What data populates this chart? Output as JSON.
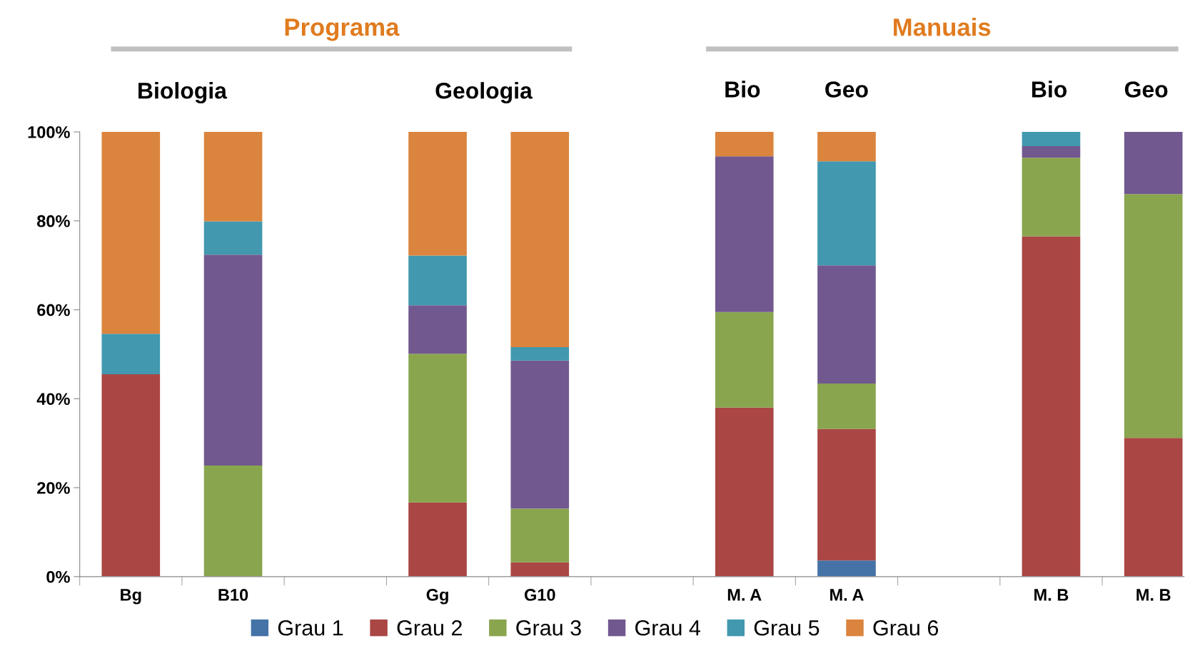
{
  "chart_data": {
    "type": "bar",
    "stacked": true,
    "categories": [
      "Bg",
      "B10",
      null,
      "Gg",
      "G10",
      null,
      "M. A",
      "M. A",
      null,
      "M. B",
      "M. B"
    ],
    "series": [
      {
        "name": "Grau 1",
        "color": "#4572a7",
        "values": [
          0,
          0,
          null,
          0,
          0,
          null,
          0,
          3.6,
          null,
          0,
          0
        ]
      },
      {
        "name": "Grau 2",
        "color": "#aa4643",
        "values": [
          45.5,
          0,
          null,
          16.7,
          3.2,
          null,
          38.0,
          29.6,
          null,
          76.5,
          31.2
        ]
      },
      {
        "name": "Grau 3",
        "color": "#89a54e",
        "values": [
          0,
          25.0,
          null,
          33.4,
          12.1,
          null,
          21.5,
          10.2,
          null,
          17.7,
          54.8
        ]
      },
      {
        "name": "Grau 4",
        "color": "#71588f",
        "values": [
          0,
          47.4,
          null,
          10.9,
          33.3,
          null,
          35.0,
          26.6,
          null,
          2.6,
          14.0
        ]
      },
      {
        "name": "Grau 5",
        "color": "#4198af",
        "values": [
          9.1,
          7.5,
          null,
          11.2,
          3.0,
          null,
          0,
          23.4,
          null,
          3.2,
          0
        ]
      },
      {
        "name": "Grau 6",
        "color": "#db843d",
        "values": [
          45.4,
          20.1,
          null,
          27.8,
          48.4,
          null,
          5.5,
          6.6,
          null,
          0,
          0
        ]
      }
    ],
    "ylim": [
      0,
      100
    ],
    "yticks": [
      {
        "value": 0,
        "label": "0%"
      },
      {
        "value": 20,
        "label": "20%"
      },
      {
        "value": 40,
        "label": "40%"
      },
      {
        "value": 60,
        "label": "60%"
      },
      {
        "value": 80,
        "label": "80%"
      },
      {
        "value": 100,
        "label": "100%"
      }
    ],
    "grid": false,
    "legend": "bottom",
    "annotations": [
      "Programa",
      "Manuais",
      "Biologia",
      "Geologia",
      "Bio",
      "Geo",
      "Bio",
      "Geo"
    ]
  }
}
